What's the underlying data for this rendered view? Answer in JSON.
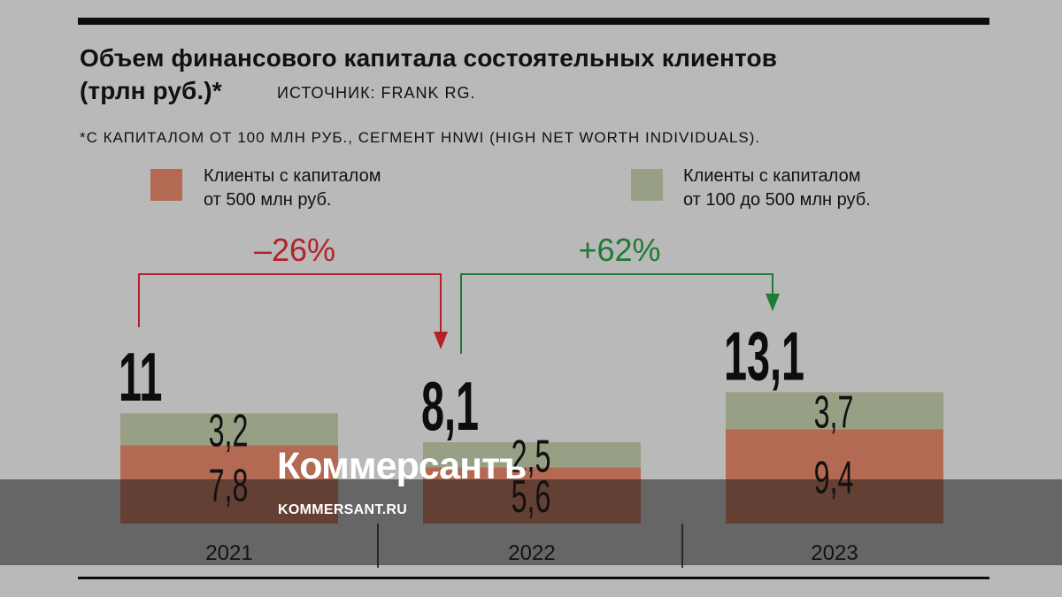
{
  "header": {
    "title_line1": "Объем финансового капитала состоятельных клиентов",
    "title_line2": "(трлн руб.)*",
    "source": "ИСТОЧНИК: FRANK RG.",
    "footnote": "*С КАПИТАЛОМ ОТ 100 МЛН РУБ., СЕГМЕНТ HNWI (HIGH NET WORTH INDIVIDUALS)."
  },
  "legend": {
    "item1_line1": "Клиенты с капиталом",
    "item1_line2": "от 500 млн руб.",
    "item2_line1": "Клиенты с капиталом",
    "item2_line2": "от 100 до 500 млн руб."
  },
  "watermark": {
    "logo": "Коммерсантъ",
    "url": "KOMMERSANT.RU"
  },
  "colors": {
    "series_large": "#b46a52",
    "series_mid": "#97a085",
    "decline": "#b3222a",
    "growth": "#1f7a35",
    "background": "#b9b9b9"
  },
  "chart_data": {
    "type": "bar",
    "stacked": true,
    "categories": [
      "2021",
      "2022",
      "2023"
    ],
    "totals": [
      11,
      8.1,
      13.1
    ],
    "total_labels": [
      "11",
      "8,1",
      "13,1"
    ],
    "series": [
      {
        "name": "Клиенты с капиталом от 500 млн руб.",
        "values": [
          7.8,
          5.6,
          9.4
        ],
        "labels": [
          "7,8",
          "5,6",
          "9,4"
        ],
        "color": "#b46a52"
      },
      {
        "name": "Клиенты с капиталом от 100 до 500 млн руб.",
        "values": [
          3.2,
          2.5,
          3.7
        ],
        "labels": [
          "3,2",
          "2,5",
          "3,7"
        ],
        "color": "#97a085"
      }
    ],
    "changes": [
      {
        "from": "2021",
        "to": "2022",
        "label": "–26%",
        "color": "#b3222a"
      },
      {
        "from": "2022",
        "to": "2023",
        "label": "+62%",
        "color": "#1f7a35"
      }
    ],
    "unit": "трлн руб."
  }
}
